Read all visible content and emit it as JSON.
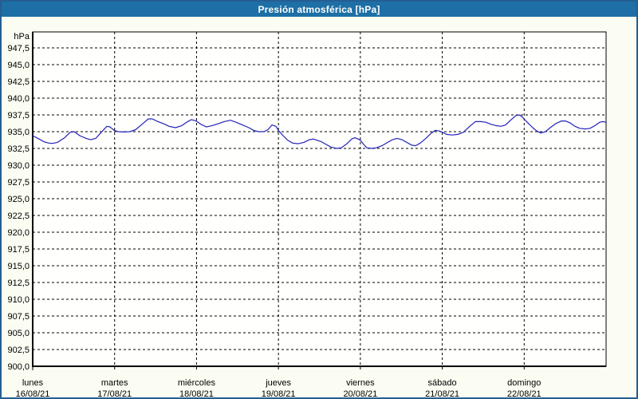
{
  "window": {
    "title": "Presión atmosférica [hPa]"
  },
  "colors": {
    "header_bg": "#1d6fa5",
    "header_text": "#ffffff",
    "frame_border": "#255e93",
    "outer_bg": "#fbfdf2",
    "plot_bg": "#fffffe",
    "grid": "#000000",
    "axis": "#000000",
    "line": "#2222b8",
    "label_text": "#000000"
  },
  "chart_data": {
    "type": "line",
    "title": "Presión atmosférica [hPa]",
    "ylabel": "hPa",
    "unit_label": "hPa",
    "ylim": [
      900.0,
      947.5
    ],
    "y_step": 2.5,
    "grid": "dashed",
    "legend": "none",
    "y_tick_labels": [
      "947,5",
      "945,0",
      "942,5",
      "940,0",
      "937,5",
      "935,0",
      "932,5",
      "930,0",
      "927,5",
      "925,0",
      "922,5",
      "920,0",
      "917,5",
      "915,0",
      "912,5",
      "910,0",
      "907,5",
      "905,0",
      "902,5",
      "900,0"
    ],
    "x_days": [
      {
        "name": "lunes",
        "date": "16/08/21"
      },
      {
        "name": "martes",
        "date": "17/08/21"
      },
      {
        "name": "miércoles",
        "date": "18/08/21"
      },
      {
        "name": "jueves",
        "date": "19/08/21"
      },
      {
        "name": "viernes",
        "date": "20/08/21"
      },
      {
        "name": "sábado",
        "date": "21/08/21"
      },
      {
        "name": "domingo",
        "date": "22/08/21"
      }
    ],
    "x_range_days": 7,
    "series": [
      {
        "name": "Presión atmosférica",
        "color": "#2222b8",
        "points": [
          [
            0,
            934.4
          ],
          [
            0.078,
            933.9
          ],
          [
            0.136,
            933.5
          ],
          [
            0.195,
            933.3
          ],
          [
            0.243,
            933.25
          ],
          [
            0.302,
            933.4
          ],
          [
            0.389,
            934.1
          ],
          [
            0.458,
            934.9
          ],
          [
            0.506,
            935.0
          ],
          [
            0.574,
            934.4
          ],
          [
            0.652,
            934.0
          ],
          [
            0.711,
            933.8
          ],
          [
            0.769,
            934.0
          ],
          [
            0.837,
            934.9
          ],
          [
            0.905,
            935.8
          ],
          [
            0.944,
            935.7
          ],
          [
            0.993,
            935.2
          ],
          [
            1.042,
            935.0
          ],
          [
            1.11,
            934.95
          ],
          [
            1.188,
            935.0
          ],
          [
            1.256,
            935.3
          ],
          [
            1.334,
            936.1
          ],
          [
            1.412,
            936.9
          ],
          [
            1.46,
            936.9
          ],
          [
            1.529,
            936.5
          ],
          [
            1.597,
            936.2
          ],
          [
            1.665,
            935.8
          ],
          [
            1.743,
            935.6
          ],
          [
            1.821,
            935.9
          ],
          [
            1.879,
            936.4
          ],
          [
            1.937,
            936.8
          ],
          [
            1.996,
            936.6
          ],
          [
            2.054,
            936.1
          ],
          [
            2.122,
            935.7
          ],
          [
            2.19,
            935.9
          ],
          [
            2.268,
            936.2
          ],
          [
            2.337,
            936.5
          ],
          [
            2.414,
            936.7
          ],
          [
            2.482,
            936.4
          ],
          [
            2.561,
            936.0
          ],
          [
            2.638,
            935.6
          ],
          [
            2.697,
            935.2
          ],
          [
            2.755,
            935.0
          ],
          [
            2.823,
            935.0
          ],
          [
            2.872,
            935.3
          ],
          [
            2.921,
            936.0
          ],
          [
            2.969,
            935.8
          ],
          [
            2.999,
            935.2
          ],
          [
            3.057,
            934.4
          ],
          [
            3.115,
            933.7
          ],
          [
            3.174,
            933.3
          ],
          [
            3.242,
            933.2
          ],
          [
            3.31,
            933.4
          ],
          [
            3.378,
            933.8
          ],
          [
            3.427,
            933.9
          ],
          [
            3.476,
            933.7
          ],
          [
            3.524,
            933.5
          ],
          [
            3.583,
            933.1
          ],
          [
            3.641,
            932.7
          ],
          [
            3.709,
            932.5
          ],
          [
            3.768,
            932.6
          ],
          [
            3.836,
            933.2
          ],
          [
            3.894,
            933.9
          ],
          [
            3.933,
            934.1
          ],
          [
            3.972,
            933.9
          ],
          [
            4.001,
            933.7
          ],
          [
            4.04,
            933.1
          ],
          [
            4.079,
            932.6
          ],
          [
            4.138,
            932.5
          ],
          [
            4.196,
            932.6
          ],
          [
            4.264,
            932.9
          ],
          [
            4.333,
            933.4
          ],
          [
            4.391,
            933.8
          ],
          [
            4.449,
            934.0
          ],
          [
            4.508,
            933.8
          ],
          [
            4.566,
            933.4
          ],
          [
            4.625,
            933.0
          ],
          [
            4.673,
            932.9
          ],
          [
            4.732,
            933.3
          ],
          [
            4.8,
            934.0
          ],
          [
            4.858,
            934.7
          ],
          [
            4.917,
            935.2
          ],
          [
            4.965,
            935.1
          ],
          [
            5.004,
            934.9
          ],
          [
            5.053,
            934.6
          ],
          [
            5.121,
            934.5
          ],
          [
            5.189,
            934.6
          ],
          [
            5.257,
            934.9
          ],
          [
            5.335,
            935.8
          ],
          [
            5.403,
            936.5
          ],
          [
            5.471,
            936.5
          ],
          [
            5.53,
            936.4
          ],
          [
            5.598,
            936.1
          ],
          [
            5.656,
            935.9
          ],
          [
            5.715,
            935.8
          ],
          [
            5.773,
            936.0
          ],
          [
            5.841,
            936.8
          ],
          [
            5.9,
            937.4
          ],
          [
            5.939,
            937.5
          ],
          [
            5.978,
            937.2
          ],
          [
            5.997,
            936.9
          ],
          [
            6.046,
            936.3
          ],
          [
            6.104,
            935.6
          ],
          [
            6.153,
            935.1
          ],
          [
            6.202,
            934.8
          ],
          [
            6.26,
            935.0
          ],
          [
            6.318,
            935.6
          ],
          [
            6.386,
            936.2
          ],
          [
            6.455,
            936.6
          ],
          [
            6.503,
            936.6
          ],
          [
            6.562,
            936.3
          ],
          [
            6.62,
            935.8
          ],
          [
            6.679,
            935.5
          ],
          [
            6.747,
            935.4
          ],
          [
            6.805,
            935.5
          ],
          [
            6.864,
            935.9
          ],
          [
            6.922,
            936.4
          ],
          [
            6.961,
            936.5
          ],
          [
            7,
            936.4
          ]
        ]
      }
    ]
  }
}
